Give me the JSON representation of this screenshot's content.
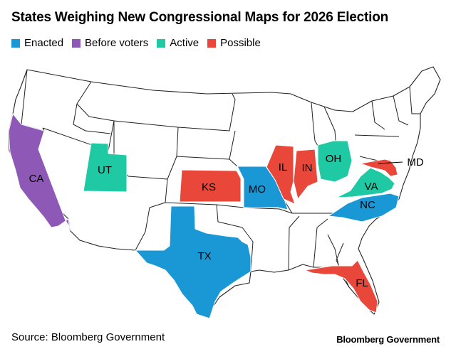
{
  "title": "States Weighing New Congressional Maps for 2026 Election",
  "legend": [
    {
      "label": "Enacted",
      "color": "#1a98d5"
    },
    {
      "label": "Before voters",
      "color": "#8e59b6"
    },
    {
      "label": "Active",
      "color": "#1fc9a4"
    },
    {
      "label": "Possible",
      "color": "#e8473a"
    }
  ],
  "states": [
    {
      "abbr": "CA",
      "status": "Before voters"
    },
    {
      "abbr": "UT",
      "status": "Active"
    },
    {
      "abbr": "KS",
      "status": "Possible"
    },
    {
      "abbr": "MO",
      "status": "Enacted"
    },
    {
      "abbr": "IL",
      "status": "Possible"
    },
    {
      "abbr": "IN",
      "status": "Possible"
    },
    {
      "abbr": "OH",
      "status": "Active"
    },
    {
      "abbr": "VA",
      "status": "Active"
    },
    {
      "abbr": "MD",
      "status": "Possible"
    },
    {
      "abbr": "NC",
      "status": "Enacted"
    },
    {
      "abbr": "TX",
      "status": "Enacted"
    },
    {
      "abbr": "FL",
      "status": "Possible"
    }
  ],
  "source": "Source: Bloomberg Government",
  "brand": "Bloomberg Government"
}
